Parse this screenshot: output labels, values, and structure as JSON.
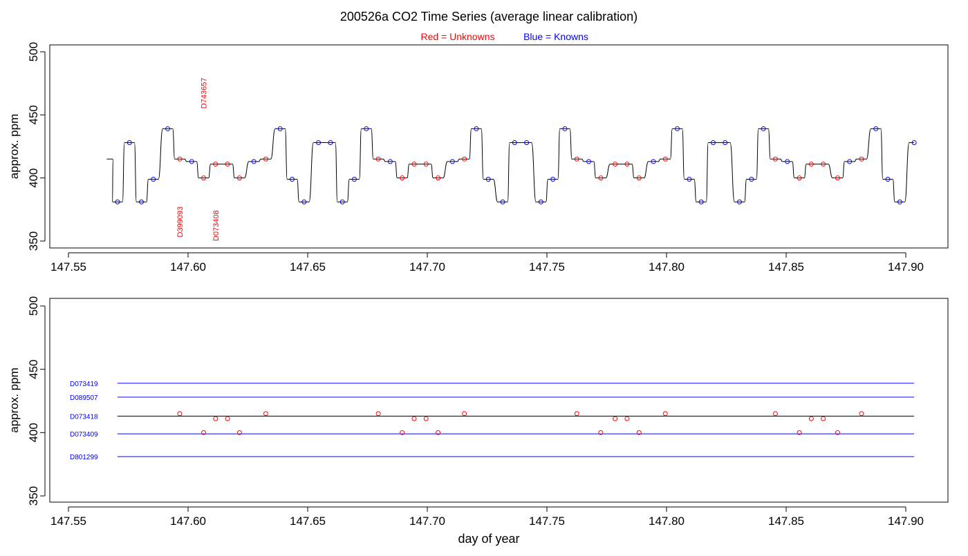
{
  "colors": {
    "unknown": "#ff0000",
    "known": "#0000ff",
    "trace": "#000000",
    "ref_line": "#0000ff",
    "unknown_ref_line": "#000000"
  },
  "header": {
    "title": "200526a   CO2 Time Series (average linear calibration)",
    "legend_unknown": "Red = Unknowns",
    "legend_known": "Blue = Knowns"
  },
  "chart_data": [
    {
      "type": "line",
      "ylabel": "approx. ppm",
      "xlabel": "",
      "xlim": [
        147.55,
        147.9
      ],
      "ylim": [
        350,
        500
      ],
      "xticks": [
        "147.55",
        "147.60",
        "147.65",
        "147.70",
        "147.75",
        "147.80",
        "147.85",
        "147.90"
      ],
      "yticks": [
        "350",
        "400",
        "450",
        "500"
      ],
      "series": [
        {
          "points": [
            [
              147.5665,
              415
            ],
            [
              147.5705,
              381
            ],
            [
              147.5755,
              428
            ],
            [
              147.5805,
              381
            ],
            [
              147.5855,
              399
            ],
            [
              147.5915,
              439
            ],
            [
              147.5965,
              415
            ],
            [
              147.6015,
              413
            ],
            [
              147.6065,
              400
            ],
            [
              147.6115,
              411
            ],
            [
              147.6165,
              411
            ],
            [
              147.6215,
              400
            ],
            [
              147.6275,
              413
            ],
            [
              147.6325,
              415
            ],
            [
              147.6385,
              439
            ],
            [
              147.6435,
              399
            ],
            [
              147.6485,
              381
            ],
            [
              147.6545,
              428
            ],
            [
              147.6595,
              428
            ],
            [
              147.6645,
              381
            ],
            [
              147.6695,
              399
            ],
            [
              147.6745,
              439
            ],
            [
              147.6795,
              415
            ],
            [
              147.6845,
              413
            ],
            [
              147.6895,
              400
            ],
            [
              147.6945,
              411
            ],
            [
              147.6995,
              411
            ],
            [
              147.7045,
              400
            ],
            [
              147.7105,
              413
            ],
            [
              147.7155,
              415
            ],
            [
              147.7205,
              439
            ],
            [
              147.7255,
              399
            ],
            [
              147.7315,
              381
            ],
            [
              147.7365,
              428
            ],
            [
              147.7415,
              428
            ],
            [
              147.7475,
              381
            ],
            [
              147.7525,
              399
            ],
            [
              147.7575,
              439
            ],
            [
              147.7625,
              415
            ],
            [
              147.7675,
              413
            ],
            [
              147.7725,
              400
            ],
            [
              147.7785,
              411
            ],
            [
              147.7835,
              411
            ],
            [
              147.7885,
              400
            ],
            [
              147.7945,
              413
            ],
            [
              147.7995,
              415
            ],
            [
              147.8045,
              439
            ],
            [
              147.8095,
              399
            ],
            [
              147.8145,
              381
            ],
            [
              147.8195,
              428
            ],
            [
              147.8245,
              428
            ],
            [
              147.8305,
              381
            ],
            [
              147.8355,
              399
            ],
            [
              147.8405,
              439
            ],
            [
              147.8455,
              415
            ],
            [
              147.8505,
              413
            ],
            [
              147.8555,
              400
            ],
            [
              147.8605,
              411
            ],
            [
              147.8655,
              411
            ],
            [
              147.8715,
              400
            ],
            [
              147.8765,
              413
            ],
            [
              147.8815,
              415
            ],
            [
              147.8875,
              439
            ],
            [
              147.8925,
              399
            ],
            [
              147.8975,
              381
            ],
            [
              147.9035,
              428
            ]
          ]
        }
      ],
      "markers": [
        {
          "x": 147.5705,
          "y": 381,
          "kind": "known"
        },
        {
          "x": 147.5755,
          "y": 428,
          "kind": "known"
        },
        {
          "x": 147.5805,
          "y": 381,
          "kind": "known"
        },
        {
          "x": 147.5855,
          "y": 399,
          "kind": "known"
        },
        {
          "x": 147.5915,
          "y": 439,
          "kind": "known"
        },
        {
          "x": 147.5965,
          "y": 415,
          "kind": "unknown"
        },
        {
          "x": 147.6015,
          "y": 413,
          "kind": "known"
        },
        {
          "x": 147.6065,
          "y": 400,
          "kind": "unknown"
        },
        {
          "x": 147.6115,
          "y": 411,
          "kind": "unknown"
        },
        {
          "x": 147.6165,
          "y": 411,
          "kind": "unknown"
        },
        {
          "x": 147.6215,
          "y": 400,
          "kind": "unknown"
        },
        {
          "x": 147.6275,
          "y": 413,
          "kind": "known"
        },
        {
          "x": 147.6325,
          "y": 415,
          "kind": "unknown"
        },
        {
          "x": 147.6385,
          "y": 439,
          "kind": "known"
        },
        {
          "x": 147.6435,
          "y": 399,
          "kind": "known"
        },
        {
          "x": 147.6485,
          "y": 381,
          "kind": "known"
        },
        {
          "x": 147.6545,
          "y": 428,
          "kind": "known"
        },
        {
          "x": 147.6595,
          "y": 428,
          "kind": "known"
        },
        {
          "x": 147.6645,
          "y": 381,
          "kind": "known"
        },
        {
          "x": 147.6695,
          "y": 399,
          "kind": "known"
        },
        {
          "x": 147.6745,
          "y": 439,
          "kind": "known"
        },
        {
          "x": 147.6795,
          "y": 415,
          "kind": "unknown"
        },
        {
          "x": 147.6845,
          "y": 413,
          "kind": "known"
        },
        {
          "x": 147.6895,
          "y": 400,
          "kind": "unknown"
        },
        {
          "x": 147.6945,
          "y": 411,
          "kind": "unknown"
        },
        {
          "x": 147.6995,
          "y": 411,
          "kind": "unknown"
        },
        {
          "x": 147.7045,
          "y": 400,
          "kind": "unknown"
        },
        {
          "x": 147.7105,
          "y": 413,
          "kind": "known"
        },
        {
          "x": 147.7155,
          "y": 415,
          "kind": "unknown"
        },
        {
          "x": 147.7205,
          "y": 439,
          "kind": "known"
        },
        {
          "x": 147.7255,
          "y": 399,
          "kind": "known"
        },
        {
          "x": 147.7315,
          "y": 381,
          "kind": "known"
        },
        {
          "x": 147.7365,
          "y": 428,
          "kind": "known"
        },
        {
          "x": 147.7415,
          "y": 428,
          "kind": "known"
        },
        {
          "x": 147.7475,
          "y": 381,
          "kind": "known"
        },
        {
          "x": 147.7525,
          "y": 399,
          "kind": "known"
        },
        {
          "x": 147.7575,
          "y": 439,
          "kind": "known"
        },
        {
          "x": 147.7625,
          "y": 415,
          "kind": "unknown"
        },
        {
          "x": 147.7675,
          "y": 413,
          "kind": "known"
        },
        {
          "x": 147.7725,
          "y": 400,
          "kind": "unknown"
        },
        {
          "x": 147.7785,
          "y": 411,
          "kind": "unknown"
        },
        {
          "x": 147.7835,
          "y": 411,
          "kind": "unknown"
        },
        {
          "x": 147.7885,
          "y": 400,
          "kind": "unknown"
        },
        {
          "x": 147.7945,
          "y": 413,
          "kind": "known"
        },
        {
          "x": 147.7995,
          "y": 415,
          "kind": "unknown"
        },
        {
          "x": 147.8045,
          "y": 439,
          "kind": "known"
        },
        {
          "x": 147.8095,
          "y": 399,
          "kind": "known"
        },
        {
          "x": 147.8145,
          "y": 381,
          "kind": "known"
        },
        {
          "x": 147.8195,
          "y": 428,
          "kind": "known"
        },
        {
          "x": 147.8245,
          "y": 428,
          "kind": "known"
        },
        {
          "x": 147.8305,
          "y": 381,
          "kind": "known"
        },
        {
          "x": 147.8355,
          "y": 399,
          "kind": "known"
        },
        {
          "x": 147.8405,
          "y": 439,
          "kind": "known"
        },
        {
          "x": 147.8455,
          "y": 415,
          "kind": "unknown"
        },
        {
          "x": 147.8505,
          "y": 413,
          "kind": "known"
        },
        {
          "x": 147.8555,
          "y": 400,
          "kind": "unknown"
        },
        {
          "x": 147.8605,
          "y": 411,
          "kind": "unknown"
        },
        {
          "x": 147.8655,
          "y": 411,
          "kind": "unknown"
        },
        {
          "x": 147.8715,
          "y": 400,
          "kind": "unknown"
        },
        {
          "x": 147.8765,
          "y": 413,
          "kind": "known"
        },
        {
          "x": 147.8815,
          "y": 415,
          "kind": "unknown"
        },
        {
          "x": 147.8875,
          "y": 439,
          "kind": "known"
        },
        {
          "x": 147.8925,
          "y": 399,
          "kind": "known"
        },
        {
          "x": 147.8975,
          "y": 381,
          "kind": "known"
        },
        {
          "x": 147.9035,
          "y": 428,
          "kind": "known"
        }
      ],
      "annotations": [
        {
          "text": "D743657",
          "x": 147.6065,
          "y": 455,
          "anchor": "start"
        },
        {
          "text": "D399093",
          "x": 147.5965,
          "y": 353,
          "anchor": "start"
        },
        {
          "text": "D073408",
          "x": 147.6115,
          "y": 350,
          "anchor": "start"
        }
      ]
    },
    {
      "type": "scatter",
      "ylabel": "approx. ppm",
      "xlabel": "day of year",
      "xlim": [
        147.55,
        147.9
      ],
      "ylim": [
        350,
        500
      ],
      "xticks": [
        "147.55",
        "147.60",
        "147.65",
        "147.70",
        "147.75",
        "147.80",
        "147.85",
        "147.90"
      ],
      "yticks": [
        "350",
        "400",
        "450",
        "500"
      ],
      "x_range": [
        147.5705,
        147.9035
      ],
      "reference_lines": [
        {
          "label": "D073419",
          "y": 439,
          "kind": "known"
        },
        {
          "label": "D089507",
          "y": 428,
          "kind": "known"
        },
        {
          "label": "D073418",
          "y": 413,
          "kind": "unknown_ref"
        },
        {
          "label": "D073409",
          "y": 399,
          "kind": "known"
        },
        {
          "label": "D801299",
          "y": 381,
          "kind": "known"
        }
      ],
      "unknowns": [
        {
          "x": 147.5965,
          "y": 415
        },
        {
          "x": 147.6065,
          "y": 400
        },
        {
          "x": 147.6115,
          "y": 411
        },
        {
          "x": 147.6165,
          "y": 411
        },
        {
          "x": 147.6215,
          "y": 400
        },
        {
          "x": 147.6325,
          "y": 415
        },
        {
          "x": 147.6795,
          "y": 415
        },
        {
          "x": 147.6895,
          "y": 400
        },
        {
          "x": 147.6945,
          "y": 411
        },
        {
          "x": 147.6995,
          "y": 411
        },
        {
          "x": 147.7045,
          "y": 400
        },
        {
          "x": 147.7155,
          "y": 415
        },
        {
          "x": 147.7625,
          "y": 415
        },
        {
          "x": 147.7725,
          "y": 400
        },
        {
          "x": 147.7785,
          "y": 411
        },
        {
          "x": 147.7835,
          "y": 411
        },
        {
          "x": 147.7885,
          "y": 400
        },
        {
          "x": 147.7995,
          "y": 415
        },
        {
          "x": 147.8455,
          "y": 415
        },
        {
          "x": 147.8555,
          "y": 400
        },
        {
          "x": 147.8605,
          "y": 411
        },
        {
          "x": 147.8655,
          "y": 411
        },
        {
          "x": 147.8715,
          "y": 400
        },
        {
          "x": 147.8815,
          "y": 415
        }
      ]
    }
  ]
}
